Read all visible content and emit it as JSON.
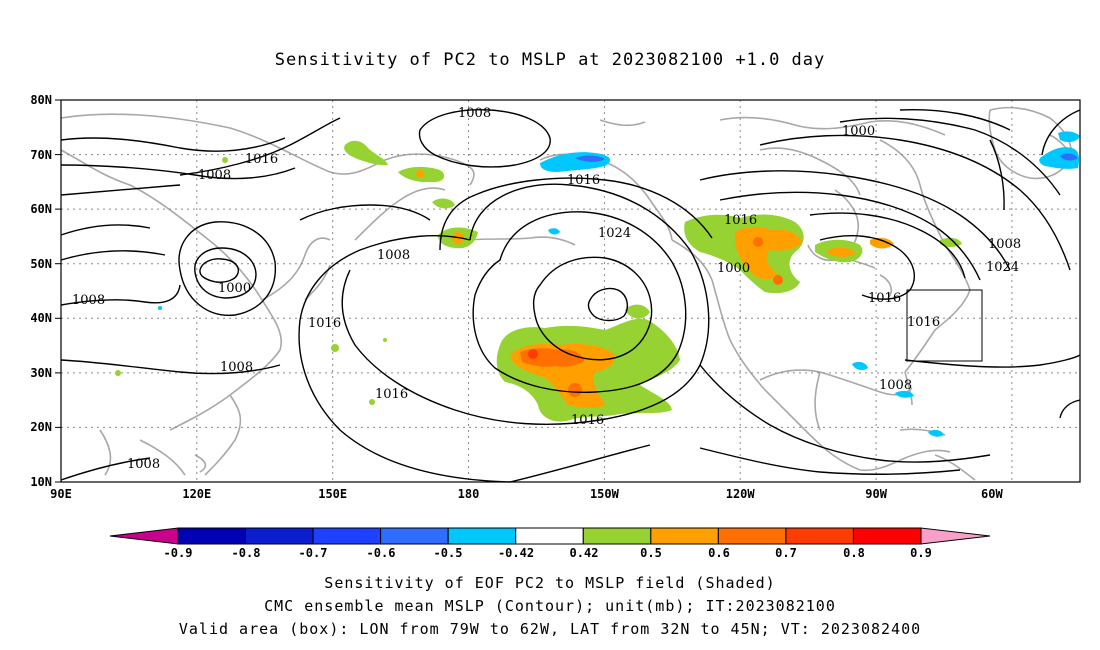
{
  "title": "Sensitivity of PC2 to MSLP at 2023082100 +1.0 day",
  "lat_ticks": [
    "80N",
    "70N",
    "60N",
    "50N",
    "40N",
    "30N",
    "20N",
    "10N"
  ],
  "lon_ticks": [
    "90E",
    "120E",
    "150E",
    "180",
    "150W",
    "120W",
    "90W",
    "60W"
  ],
  "contour_labels": [
    {
      "text": "1008"
    },
    {
      "text": "1016"
    },
    {
      "text": "1008"
    },
    {
      "text": "1016"
    },
    {
      "text": "1024"
    },
    {
      "text": "1008"
    },
    {
      "text": "1000"
    },
    {
      "text": "1008"
    },
    {
      "text": "1016"
    },
    {
      "text": "1008"
    },
    {
      "text": "1016"
    },
    {
      "text": "1016"
    },
    {
      "text": "1008"
    },
    {
      "text": "1016"
    },
    {
      "text": "1000"
    },
    {
      "text": "1000"
    },
    {
      "text": "1008"
    },
    {
      "text": "1024"
    },
    {
      "text": "1016"
    },
    {
      "text": "1016"
    },
    {
      "text": "1008"
    }
  ],
  "colorbar": {
    "labels": [
      "-0.9",
      "-0.8",
      "-0.7",
      "-0.6",
      "-0.5",
      "-0.42",
      "0.42",
      "0.5",
      "0.6",
      "0.7",
      "0.8",
      "0.9"
    ],
    "colors": [
      "#0000b4",
      "#0a1ecf",
      "#1e40ff",
      "#2f6dff",
      "#00c8ff",
      "#ffffff",
      "#96d232",
      "#ffa000",
      "#ff7000",
      "#ff3c00",
      "#ff0000"
    ],
    "low_end_color": "#c8008c",
    "high_end_color": "#f8a0c8"
  },
  "captions": [
    "Sensitivity of EOF PC2 to MSLP field (Shaded)",
    "CMC ensemble mean MSLP (Contour); unit(mb); IT:2023082100",
    "Valid area (box): LON from 79W to 62W, LAT from 32N to 45N; VT: 2023082400"
  ],
  "valid_box": {
    "lon": [
      -79,
      -62
    ],
    "lat": [
      32,
      45
    ]
  }
}
